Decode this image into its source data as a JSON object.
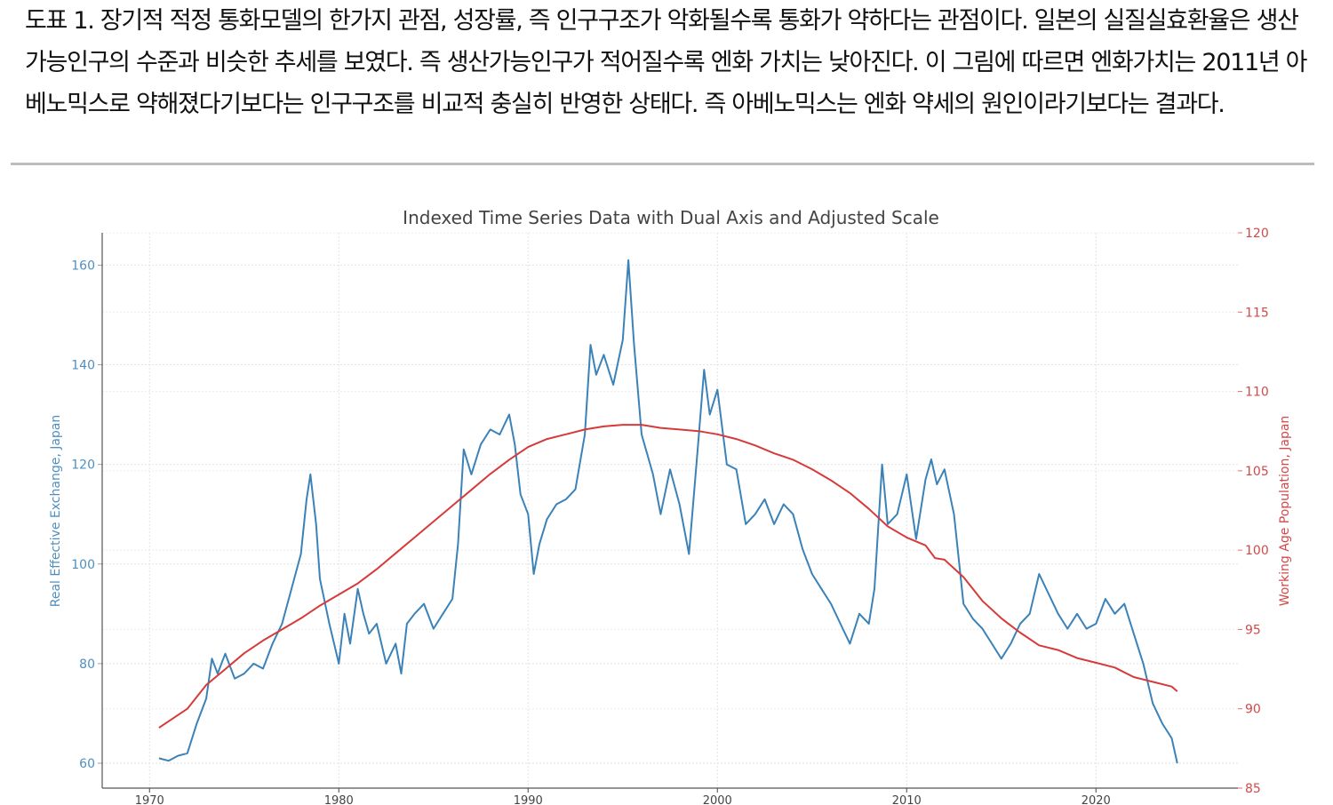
{
  "caption": "도표 1. 장기적 적정 통화모델의 한가지 관점, 성장률, 즉 인구구조가 악화될수록 통화가 약하다는 관점이다. 일본의 실질실효환율은 생산가능인구의 수준과 비슷한 추세를 보였다. 즉 생산가능인구가 적어질수록 엔화 가치는 낮아진다. 이 그림에 따르면 엔화가치는 2011년 아베노믹스로 약해졌다기보다는 인구구조를 비교적 충실히 반영한 상태다. 즉 아베노믹스는 엔화 약세의 원인이라기보다는 결과다.",
  "chart_data": {
    "type": "line",
    "title": "Indexed Time Series Data with Dual Axis and Adjusted Scale",
    "xlabel": "",
    "x_ticks": [
      1970,
      1980,
      1990,
      2000,
      2010,
      2020
    ],
    "xlim": [
      1967.5,
      2027.5
    ],
    "grid": true,
    "legend": "none",
    "left_axis": {
      "label": "Real Effective Exchange, Japan",
      "ylim": [
        55,
        166.5
      ],
      "ticks": [
        60,
        80,
        100,
        120,
        140,
        160
      ],
      "color": "#3b82b8"
    },
    "right_axis": {
      "label": "Working Age Population, Japan",
      "ylim": [
        85,
        120
      ],
      "ticks": [
        85,
        90,
        95,
        100,
        105,
        110,
        115,
        120
      ],
      "color": "#d63a3a"
    },
    "series": [
      {
        "axis": "left",
        "color": "#3b82b8",
        "x": [
          1970.5,
          1971.0,
          1971.5,
          1972.0,
          1972.5,
          1973.0,
          1973.3,
          1973.6,
          1974.0,
          1974.5,
          1975.0,
          1975.5,
          1976.0,
          1976.5,
          1977.0,
          1977.5,
          1978.0,
          1978.3,
          1978.5,
          1978.8,
          1979.0,
          1979.5,
          1980.0,
          1980.3,
          1980.6,
          1981.0,
          1981.3,
          1981.6,
          1982.0,
          1982.5,
          1983.0,
          1983.3,
          1983.6,
          1984.0,
          1984.5,
          1985.0,
          1985.5,
          1986.0,
          1986.3,
          1986.6,
          1987.0,
          1987.5,
          1988.0,
          1988.5,
          1989.0,
          1989.3,
          1989.6,
          1990.0,
          1990.3,
          1990.6,
          1991.0,
          1991.5,
          1992.0,
          1992.5,
          1993.0,
          1993.3,
          1993.6,
          1994.0,
          1994.5,
          1995.0,
          1995.3,
          1995.6,
          1996.0,
          1996.3,
          1996.6,
          1997.0,
          1997.5,
          1998.0,
          1998.5,
          1999.0,
          1999.3,
          1999.6,
          2000.0,
          2000.5,
          2001.0,
          2001.5,
          2002.0,
          2002.5,
          2003.0,
          2003.5,
          2004.0,
          2004.5,
          2005.0,
          2005.5,
          2006.0,
          2006.5,
          2007.0,
          2007.5,
          2008.0,
          2008.3,
          2008.7,
          2009.0,
          2009.5,
          2010.0,
          2010.5,
          2011.0,
          2011.3,
          2011.6,
          2012.0,
          2012.5,
          2013.0,
          2013.5,
          2014.0,
          2014.5,
          2015.0,
          2015.5,
          2016.0,
          2016.5,
          2017.0,
          2017.5,
          2018.0,
          2018.5,
          2019.0,
          2019.5,
          2020.0,
          2020.5,
          2021.0,
          2021.5,
          2022.0,
          2022.5,
          2023.0,
          2023.5,
          2024.0,
          2024.3
        ],
        "values": [
          61,
          60.5,
          61.5,
          62,
          68,
          73,
          81,
          78,
          82,
          77,
          78,
          80,
          79,
          84,
          88,
          95,
          102,
          113,
          118,
          108,
          97,
          88,
          80,
          90,
          84,
          95,
          90,
          86,
          88,
          80,
          84,
          78,
          88,
          90,
          92,
          87,
          90,
          93,
          104,
          123,
          118,
          124,
          127,
          126,
          130,
          124,
          114,
          110,
          98,
          104,
          109,
          112,
          113,
          115,
          126,
          144,
          138,
          142,
          136,
          145,
          161,
          144,
          126,
          122,
          118,
          110,
          119,
          112,
          102,
          125,
          139,
          130,
          135,
          120,
          119,
          108,
          110,
          113,
          108,
          112,
          110,
          103,
          98,
          95,
          92,
          88,
          84,
          90,
          88,
          95,
          120,
          108,
          110,
          118,
          105,
          117,
          121,
          116,
          119,
          110,
          92,
          89,
          87,
          84,
          81,
          84,
          88,
          90,
          98,
          94,
          90,
          87,
          90,
          87,
          88,
          93,
          90,
          92,
          86,
          80,
          72,
          68,
          65,
          60
        ]
      },
      {
        "axis": "right",
        "color": "#d63a3a",
        "x": [
          1970.5,
          1972.0,
          1973.0,
          1974.0,
          1975.0,
          1976.0,
          1977.0,
          1978.0,
          1979.0,
          1980.0,
          1981.0,
          1982.0,
          1983.0,
          1984.0,
          1985.0,
          1986.0,
          1987.0,
          1988.0,
          1989.0,
          1990.0,
          1991.0,
          1992.0,
          1993.0,
          1994.0,
          1995.0,
          1996.0,
          1997.0,
          1998.0,
          1999.0,
          2000.0,
          2001.0,
          2002.0,
          2003.0,
          2004.0,
          2005.0,
          2006.0,
          2007.0,
          2008.0,
          2009.0,
          2010.0,
          2011.0,
          2011.5,
          2012.0,
          2013.0,
          2014.0,
          2015.0,
          2016.0,
          2017.0,
          2018.0,
          2019.0,
          2020.0,
          2021.0,
          2022.0,
          2023.0,
          2024.0,
          2024.3
        ],
        "values": [
          88.8,
          90.0,
          91.5,
          92.5,
          93.5,
          94.3,
          95.0,
          95.7,
          96.5,
          97.2,
          97.9,
          98.8,
          99.8,
          100.8,
          101.8,
          102.8,
          103.8,
          104.8,
          105.7,
          106.5,
          107.0,
          107.3,
          107.6,
          107.8,
          107.9,
          107.9,
          107.7,
          107.6,
          107.5,
          107.3,
          107.0,
          106.6,
          106.1,
          105.7,
          105.1,
          104.4,
          103.6,
          102.6,
          101.5,
          100.8,
          100.3,
          99.5,
          99.4,
          98.3,
          96.8,
          95.7,
          94.8,
          94.0,
          93.7,
          93.2,
          92.9,
          92.6,
          92.0,
          91.7,
          91.4,
          91.1
        ]
      }
    ]
  }
}
